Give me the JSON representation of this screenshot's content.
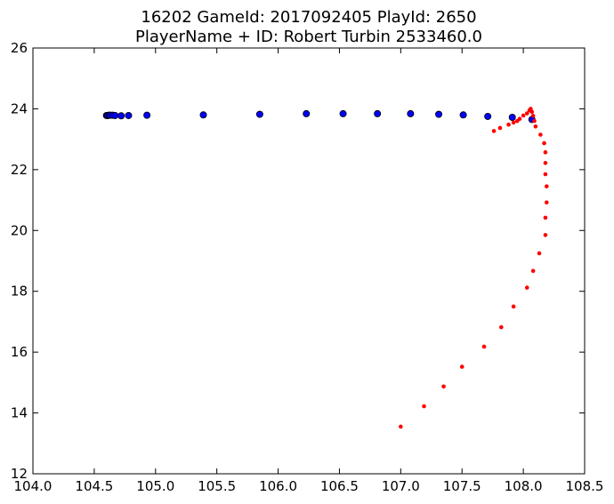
{
  "chart_data": {
    "type": "scatter",
    "title_line1": "16202 GameId: 2017092405 PlayId: 2650",
    "title_line2": "PlayerName + ID: Robert Turbin 2533460.0",
    "xlabel": "",
    "ylabel": "",
    "xlim": [
      104.0,
      108.5
    ],
    "ylim": [
      12,
      26
    ],
    "x_ticks": [
      104.0,
      104.5,
      105.0,
      105.5,
      106.0,
      106.5,
      107.0,
      107.5,
      108.0,
      108.5
    ],
    "x_tick_labels": [
      "104.0",
      "104.5",
      "105.0",
      "105.5",
      "106.0",
      "106.5",
      "107.0",
      "107.5",
      "108.0",
      "108.5"
    ],
    "y_ticks": [
      12,
      14,
      16,
      18,
      20,
      22,
      24,
      26
    ],
    "y_tick_labels": [
      "12",
      "14",
      "16",
      "18",
      "20",
      "22",
      "24",
      "26"
    ],
    "grid": false,
    "series": [
      {
        "color": "#0000ff",
        "marker": "circle",
        "points": [
          [
            104.6,
            23.78
          ],
          [
            104.61,
            23.78
          ],
          [
            104.62,
            23.79
          ],
          [
            104.63,
            23.79
          ],
          [
            104.65,
            23.79
          ],
          [
            104.67,
            23.78
          ],
          [
            104.72,
            23.77
          ],
          [
            104.78,
            23.78
          ],
          [
            104.93,
            23.79
          ],
          [
            105.39,
            23.8
          ],
          [
            105.85,
            23.82
          ],
          [
            106.23,
            23.84
          ],
          [
            106.53,
            23.84
          ],
          [
            106.81,
            23.84
          ],
          [
            107.08,
            23.84
          ],
          [
            107.31,
            23.82
          ],
          [
            107.51,
            23.8
          ],
          [
            107.71,
            23.75
          ],
          [
            107.91,
            23.72
          ],
          [
            108.07,
            23.65
          ]
        ]
      },
      {
        "color": "#ff0000",
        "marker": "dot",
        "points": [
          [
            107.0,
            13.55
          ],
          [
            107.19,
            14.22
          ],
          [
            107.35,
            14.87
          ],
          [
            107.5,
            15.52
          ],
          [
            107.68,
            16.18
          ],
          [
            107.82,
            16.82
          ],
          [
            107.92,
            17.5
          ],
          [
            108.03,
            18.12
          ],
          [
            108.08,
            18.67
          ],
          [
            108.13,
            19.25
          ],
          [
            108.18,
            19.85
          ],
          [
            108.18,
            20.42
          ],
          [
            108.19,
            20.92
          ],
          [
            108.19,
            21.45
          ],
          [
            108.18,
            21.85
          ],
          [
            108.18,
            22.22
          ],
          [
            108.18,
            22.57
          ],
          [
            108.17,
            22.87
          ],
          [
            108.14,
            23.15
          ],
          [
            108.1,
            23.42
          ],
          [
            108.09,
            23.6
          ],
          [
            108.08,
            23.77
          ],
          [
            108.07,
            23.9
          ],
          [
            108.06,
            24.0
          ],
          [
            108.05,
            23.95
          ],
          [
            108.03,
            23.85
          ],
          [
            108.0,
            23.78
          ],
          [
            107.97,
            23.67
          ],
          [
            107.95,
            23.6
          ],
          [
            107.92,
            23.55
          ],
          [
            107.88,
            23.48
          ],
          [
            107.81,
            23.37
          ],
          [
            107.76,
            23.27
          ]
        ]
      }
    ]
  }
}
